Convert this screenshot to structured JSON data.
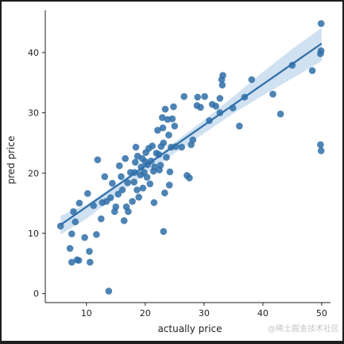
{
  "watermark": "@稀土掘金技术社区",
  "chart_data": {
    "type": "scatter",
    "title": "",
    "xlabel": "actually price",
    "ylabel": "pred price",
    "xlim": [
      3,
      51.5
    ],
    "ylim": [
      -1.5,
      47
    ],
    "xticks": [
      10,
      20,
      30,
      40,
      50
    ],
    "yticks": [
      0,
      10,
      20,
      30,
      40
    ],
    "grid": false,
    "point_color": "#2f6ea8",
    "line_color": "#2f6ea8",
    "band_color": "#a9c8e6",
    "regression": {
      "x0": 5.6,
      "y0": 11.4,
      "x1": 50,
      "y1": 41.5
    },
    "confidence_band": {
      "x": [
        5.6,
        10,
        15,
        20,
        25,
        30,
        35,
        40,
        45,
        50
      ],
      "upper": [
        12.9,
        14.8,
        18.1,
        21.5,
        25.1,
        28.8,
        32.7,
        36.8,
        40.6,
        44.1
      ],
      "lower": [
        9.8,
        12.4,
        16.2,
        19.9,
        23.3,
        26.6,
        29.9,
        32.9,
        35.7,
        38.6
      ]
    },
    "points": [
      [
        5.6,
        11.2
      ],
      [
        7.2,
        7.5
      ],
      [
        7.5,
        9.9
      ],
      [
        7.5,
        5.2
      ],
      [
        8.4,
        5.6
      ],
      [
        8.7,
        5.5
      ],
      [
        8.1,
        11.9
      ],
      [
        7.8,
        13.6
      ],
      [
        8.8,
        15.0
      ],
      [
        9.7,
        9.3
      ],
      [
        10.2,
        16.6
      ],
      [
        10.5,
        7.0
      ],
      [
        10.6,
        5.2
      ],
      [
        11.2,
        14.6
      ],
      [
        11.7,
        9.8
      ],
      [
        11.9,
        22.2
      ],
      [
        12.7,
        15.1
      ],
      [
        12.5,
        12.4
      ],
      [
        13.1,
        19.4
      ],
      [
        13.4,
        15.3
      ],
      [
        13.8,
        0.4
      ],
      [
        14.1,
        15.9
      ],
      [
        14.4,
        18.3
      ],
      [
        14.8,
        13.6
      ],
      [
        15.0,
        14.4
      ],
      [
        15.4,
        16.5
      ],
      [
        15.6,
        21.2
      ],
      [
        15.9,
        19.4
      ],
      [
        16.1,
        17.2
      ],
      [
        16.4,
        12.1
      ],
      [
        16.6,
        22.4
      ],
      [
        16.8,
        14.4
      ],
      [
        17.0,
        18.4
      ],
      [
        17.1,
        13.6
      ],
      [
        17.5,
        20.1
      ],
      [
        17.8,
        15.3
      ],
      [
        18.1,
        18.5
      ],
      [
        18.2,
        20.1
      ],
      [
        18.3,
        21.8
      ],
      [
        18.4,
        24.3
      ],
      [
        18.6,
        17.2
      ],
      [
        18.7,
        22.8
      ],
      [
        18.9,
        16.0
      ],
      [
        19.2,
        19.7
      ],
      [
        19.3,
        21.0
      ],
      [
        19.5,
        22.4
      ],
      [
        19.6,
        17.5
      ],
      [
        19.8,
        20.1
      ],
      [
        20.0,
        21.9
      ],
      [
        20.1,
        23.4
      ],
      [
        20.3,
        19.3
      ],
      [
        20.4,
        21.4
      ],
      [
        20.6,
        24.1
      ],
      [
        20.8,
        18.2
      ],
      [
        21.0,
        22.0
      ],
      [
        21.2,
        24.5
      ],
      [
        21.4,
        20.3
      ],
      [
        21.5,
        15.1
      ],
      [
        21.6,
        21.0
      ],
      [
        21.9,
        23.3
      ],
      [
        22.1,
        27.1
      ],
      [
        22.3,
        23.1
      ],
      [
        22.4,
        20.5
      ],
      [
        22.6,
        21.3
      ],
      [
        22.7,
        24.4
      ],
      [
        22.9,
        29.2
      ],
      [
        23.0,
        27.5
      ],
      [
        23.1,
        25.0
      ],
      [
        23.1,
        10.3
      ],
      [
        23.3,
        16.7
      ],
      [
        23.4,
        30.6
      ],
      [
        23.6,
        22.6
      ],
      [
        23.8,
        28.9
      ],
      [
        24.0,
        26.3
      ],
      [
        24.1,
        18.0
      ],
      [
        24.2,
        20.2
      ],
      [
        24.4,
        24.3
      ],
      [
        24.6,
        29.0
      ],
      [
        24.8,
        31.0
      ],
      [
        25.0,
        27.8
      ],
      [
        25.2,
        24.4
      ],
      [
        26.2,
        24.3
      ],
      [
        26.6,
        32.7
      ],
      [
        27.1,
        19.6
      ],
      [
        27.5,
        19.2
      ],
      [
        27.8,
        24.7
      ],
      [
        28.1,
        25.5
      ],
      [
        28.8,
        31.2
      ],
      [
        28.9,
        32.6
      ],
      [
        29.4,
        30.9
      ],
      [
        30.1,
        32.7
      ],
      [
        30.9,
        28.7
      ],
      [
        31.4,
        31.4
      ],
      [
        32.0,
        31.1
      ],
      [
        32.7,
        32.4
      ],
      [
        33.1,
        34.6
      ],
      [
        33.0,
        35.5
      ],
      [
        33.2,
        36.2
      ],
      [
        32.7,
        30.0
      ],
      [
        34.9,
        30.8
      ],
      [
        36.0,
        27.8
      ],
      [
        36.9,
        32.6
      ],
      [
        38.1,
        35.5
      ],
      [
        41.7,
        33.1
      ],
      [
        43.0,
        29.8
      ],
      [
        45.0,
        37.9
      ],
      [
        48.4,
        37.0
      ],
      [
        49.9,
        44.8
      ],
      [
        49.8,
        39.8
      ],
      [
        49.9,
        40.3
      ],
      [
        49.8,
        24.7
      ],
      [
        49.9,
        23.7
      ]
    ]
  }
}
